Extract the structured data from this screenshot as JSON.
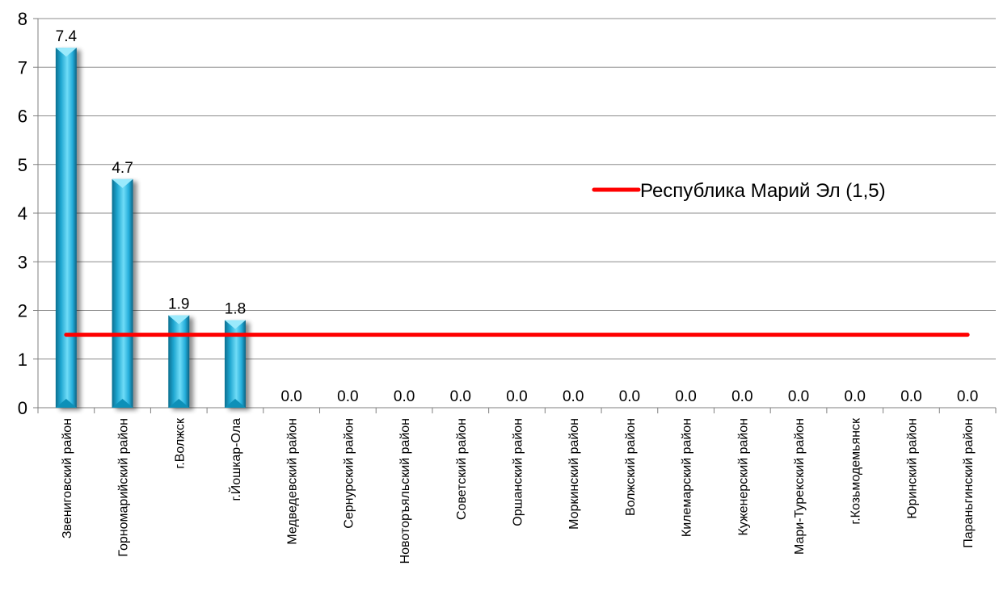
{
  "chart_data": {
    "type": "bar",
    "categories": [
      "Звениговский район",
      "Горномарийский район",
      "г.Волжск",
      "г.Йошкар-Ола",
      "Медведевский район",
      "Сернурский район",
      "Новоторъяльский район",
      "Советский район",
      "Оршанский район",
      "Моркинский район",
      "Волжский район",
      "Килемарский район",
      "Куженерский район",
      "Мари-Турекский район",
      "г.Козьмодемьянск",
      "Юринский район",
      "Параньгинский район"
    ],
    "values": [
      7.4,
      4.7,
      1.9,
      1.8,
      0,
      0,
      0,
      0,
      0,
      0,
      0,
      0,
      0,
      0,
      0,
      0,
      0
    ],
    "data_labels": [
      "7.4",
      "4.7",
      "1.9",
      "1.8",
      "0.0",
      "0.0",
      "0.0",
      "0.0",
      "0.0",
      "0.0",
      "0.0",
      "0.0",
      "0.0",
      "0.0",
      "0.0",
      "0.0",
      "0.0"
    ],
    "yticks": [
      "0",
      "1",
      "2",
      "3",
      "4",
      "5",
      "6",
      "7",
      "8"
    ],
    "ylim": [
      0,
      8
    ],
    "grid": true,
    "reference_line": {
      "name": "Республика Марий Эл (1,5)",
      "value": 1.5,
      "color": "#ff0000"
    },
    "legend_position": "right",
    "bar_color": "#29b6e0"
  }
}
